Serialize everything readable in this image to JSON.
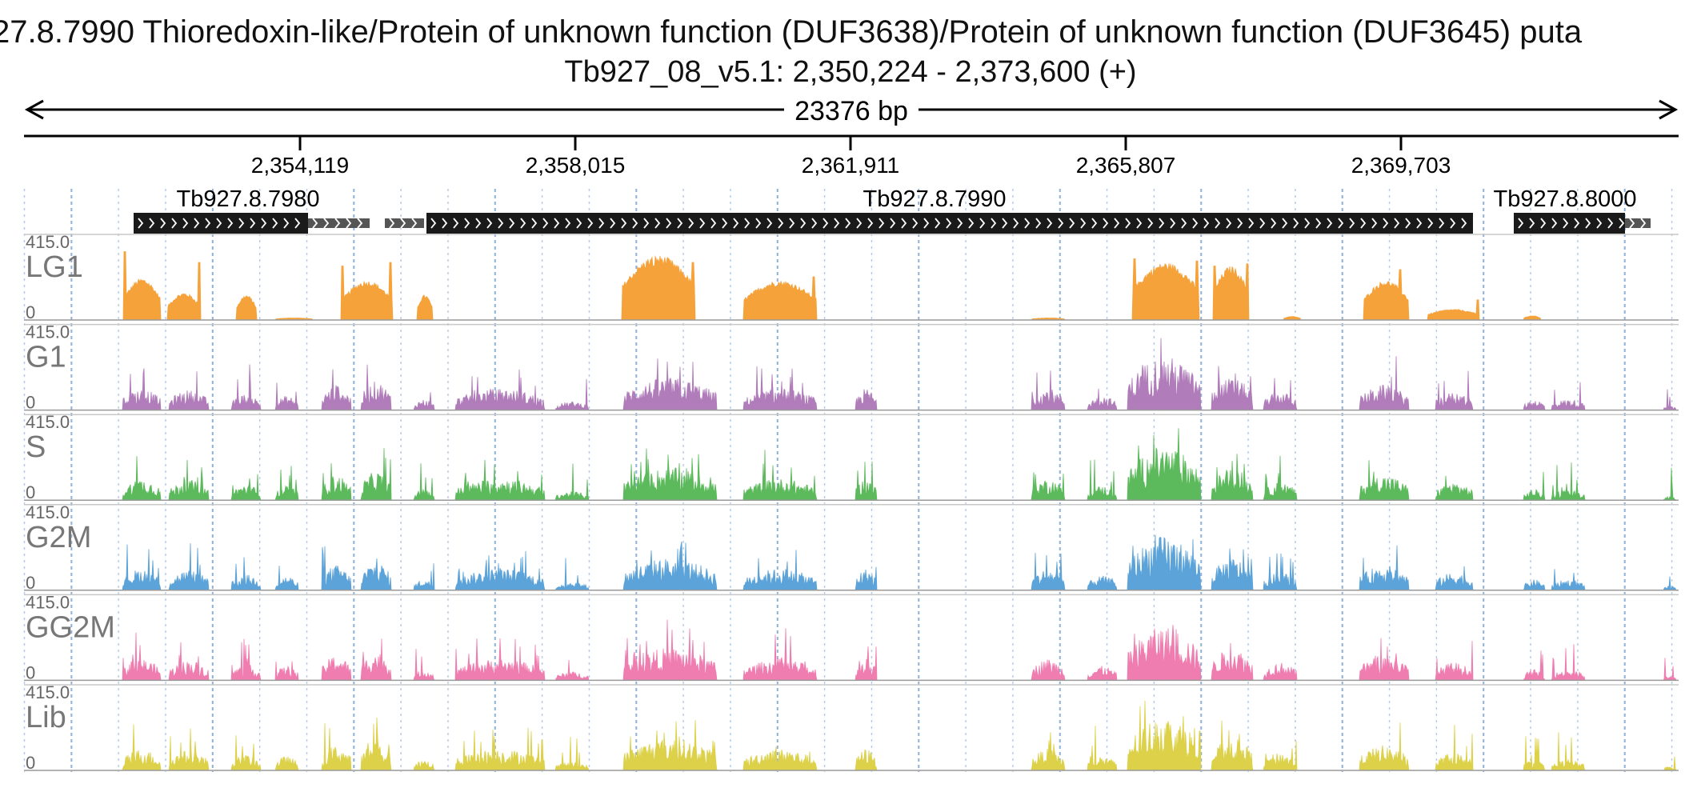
{
  "header": {
    "title": "27.8.7990  Thioredoxin-like/Protein of unknown function (DUF3638)/Protein of unknown function (DUF3645)  puta",
    "locus": "Tb927_08_v5.1: 2,350,224 - 2,373,600 (+)",
    "span_label": "23376 bp"
  },
  "ruler": {
    "tick_labels": [
      "2,354,119",
      "2,358,015",
      "2,361,911",
      "2,365,807",
      "2,369,703"
    ]
  },
  "genes": [
    {
      "name": "Tb927.8.7980",
      "strand": "+"
    },
    {
      "name": "Tb927.8.7990",
      "strand": "+"
    },
    {
      "name": "Tb927.8.8000",
      "strand": "+"
    }
  ],
  "chart_data": {
    "type": "area",
    "x_range": [
      2350224,
      2373600
    ],
    "ylim": [
      0,
      415.0
    ],
    "scale_max_label": "415.0",
    "scale_min_label": "0",
    "tracks": [
      {
        "name": "LG1",
        "color": "#f5a23b"
      },
      {
        "name": "G1",
        "color": "#b07cba"
      },
      {
        "name": "S",
        "color": "#5cba5c"
      },
      {
        "name": "G2M",
        "color": "#5ca3d9"
      },
      {
        "name": "GG2M",
        "color": "#ef7db0"
      },
      {
        "name": "Lib",
        "color": "#dcd149"
      }
    ]
  }
}
